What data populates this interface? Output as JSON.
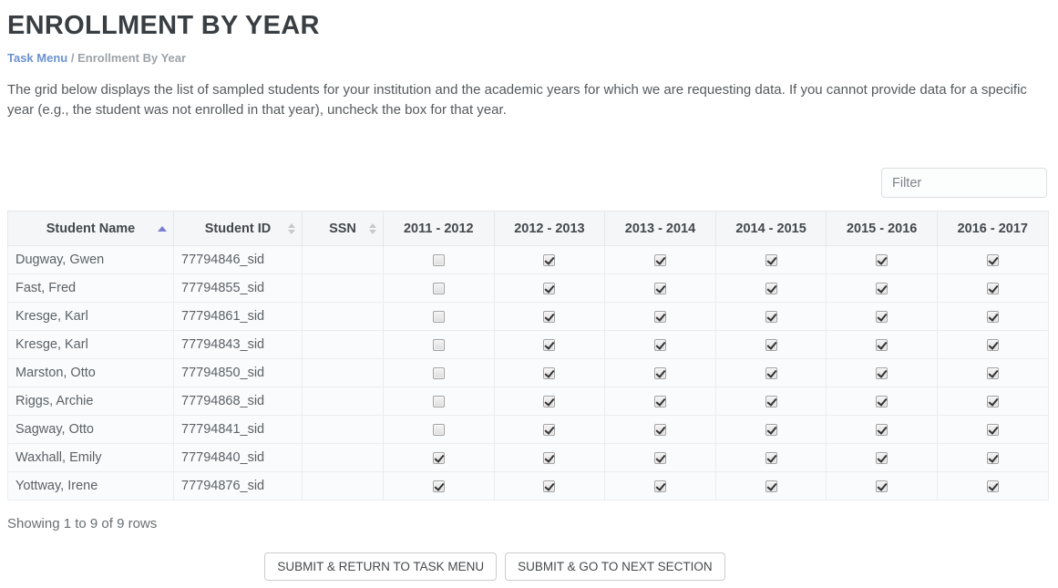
{
  "page": {
    "title": "ENROLLMENT BY YEAR",
    "breadcrumb": {
      "link": "Task Menu",
      "separator": "/",
      "current": "Enrollment By Year"
    },
    "description": "The grid below displays the list of sampled students for your institution and the academic years for which we are requesting data. If you cannot provide data for a specific year (e.g., the student was not enrolled in that year), uncheck the box for that year."
  },
  "filter": {
    "placeholder": "Filter"
  },
  "table": {
    "columns": [
      {
        "label": "Student Name",
        "sort": "asc"
      },
      {
        "label": "Student ID",
        "sort": "both"
      },
      {
        "label": "SSN",
        "sort": "both"
      },
      {
        "label": "2011 - 2012",
        "sort": "none"
      },
      {
        "label": "2012 - 2013",
        "sort": "none"
      },
      {
        "label": "2013 - 2014",
        "sort": "none"
      },
      {
        "label": "2014 - 2015",
        "sort": "none"
      },
      {
        "label": "2015 - 2016",
        "sort": "none"
      },
      {
        "label": "2016 - 2017",
        "sort": "none"
      }
    ],
    "rows": [
      {
        "name": "Dugway, Gwen",
        "id": "77794846_sid",
        "ssn": "",
        "years": [
          false,
          true,
          true,
          true,
          true,
          true
        ]
      },
      {
        "name": "Fast, Fred",
        "id": "77794855_sid",
        "ssn": "",
        "years": [
          false,
          true,
          true,
          true,
          true,
          true
        ]
      },
      {
        "name": "Kresge, Karl",
        "id": "77794861_sid",
        "ssn": "",
        "years": [
          false,
          true,
          true,
          true,
          true,
          true
        ]
      },
      {
        "name": "Kresge, Karl",
        "id": "77794843_sid",
        "ssn": "",
        "years": [
          false,
          true,
          true,
          true,
          true,
          true
        ]
      },
      {
        "name": "Marston, Otto",
        "id": "77794850_sid",
        "ssn": "",
        "years": [
          false,
          true,
          true,
          true,
          true,
          true
        ]
      },
      {
        "name": "Riggs, Archie",
        "id": "77794868_sid",
        "ssn": "",
        "years": [
          false,
          true,
          true,
          true,
          true,
          true
        ]
      },
      {
        "name": "Sagway, Otto",
        "id": "77794841_sid",
        "ssn": "",
        "years": [
          false,
          true,
          true,
          true,
          true,
          true
        ]
      },
      {
        "name": "Waxhall, Emily",
        "id": "77794840_sid",
        "ssn": "",
        "years": [
          true,
          true,
          true,
          true,
          true,
          true
        ]
      },
      {
        "name": "Yottway, Irene",
        "id": "77794876_sid",
        "ssn": "",
        "years": [
          true,
          true,
          true,
          true,
          true,
          true
        ]
      }
    ]
  },
  "status": {
    "showing": "Showing 1 to 9 of 9 rows"
  },
  "buttons": {
    "submit_return": "SUBMIT & RETURN TO TASK MENU",
    "submit_next": "SUBMIT & GO TO NEXT SECTION"
  },
  "colors": {
    "sort_active_arrow": "#7a7ed2",
    "breadcrumb_link": "#6b92cf",
    "header_bg": "#f5f6f7",
    "row_bg": "#fafbfc"
  }
}
